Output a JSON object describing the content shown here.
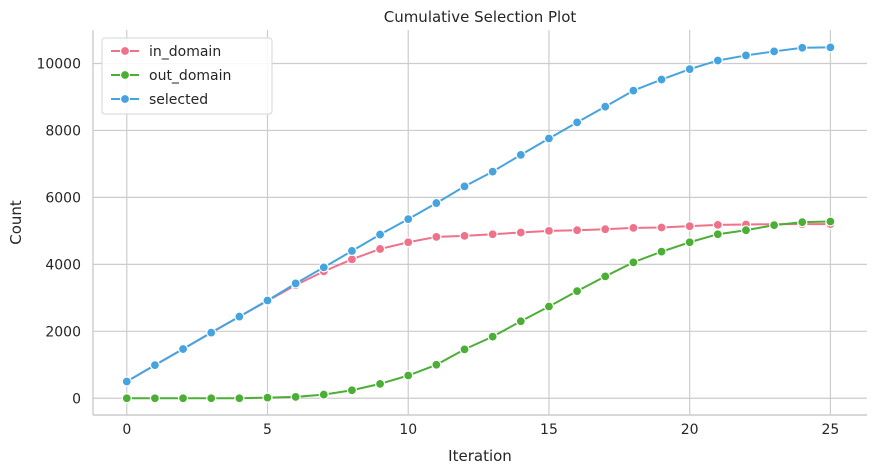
{
  "chart_data": {
    "type": "line",
    "title": "Cumulative Selection Plot",
    "xlabel": "Iteration",
    "ylabel": "Count",
    "xlim": [
      -1.2,
      26.3
    ],
    "ylim": [
      -500,
      11000
    ],
    "xticks": [
      0,
      5,
      10,
      15,
      20,
      25
    ],
    "yticks": [
      0,
      2000,
      4000,
      6000,
      8000,
      10000
    ],
    "grid": true,
    "legend_position": "top-left",
    "x": [
      0,
      1,
      2,
      3,
      4,
      5,
      6,
      7,
      8,
      9,
      10,
      11,
      12,
      13,
      14,
      15,
      16,
      17,
      18,
      19,
      20,
      21,
      22,
      23,
      24,
      25
    ],
    "series": [
      {
        "name": "in_domain",
        "color": "#f0718a",
        "values": [
          500,
          990,
          1470,
          1960,
          2440,
          2910,
          3380,
          3790,
          4150,
          4460,
          4660,
          4820,
          4850,
          4900,
          4950,
          5000,
          5020,
          5050,
          5090,
          5100,
          5140,
          5180,
          5190,
          5200,
          5200,
          5200
        ]
      },
      {
        "name": "out_domain",
        "color": "#4caf35",
        "values": [
          0,
          0,
          0,
          0,
          0,
          20,
          40,
          110,
          240,
          430,
          680,
          1000,
          1460,
          1840,
          2300,
          2740,
          3200,
          3640,
          4060,
          4380,
          4660,
          4900,
          5020,
          5170,
          5260,
          5280
        ]
      },
      {
        "name": "selected",
        "color": "#45a3e0",
        "values": [
          500,
          990,
          1470,
          1960,
          2440,
          2920,
          3430,
          3910,
          4400,
          4890,
          5350,
          5830,
          6330,
          6770,
          7270,
          7760,
          8240,
          8710,
          9190,
          9520,
          9830,
          10090,
          10240,
          10360,
          10470,
          10480
        ]
      }
    ]
  }
}
